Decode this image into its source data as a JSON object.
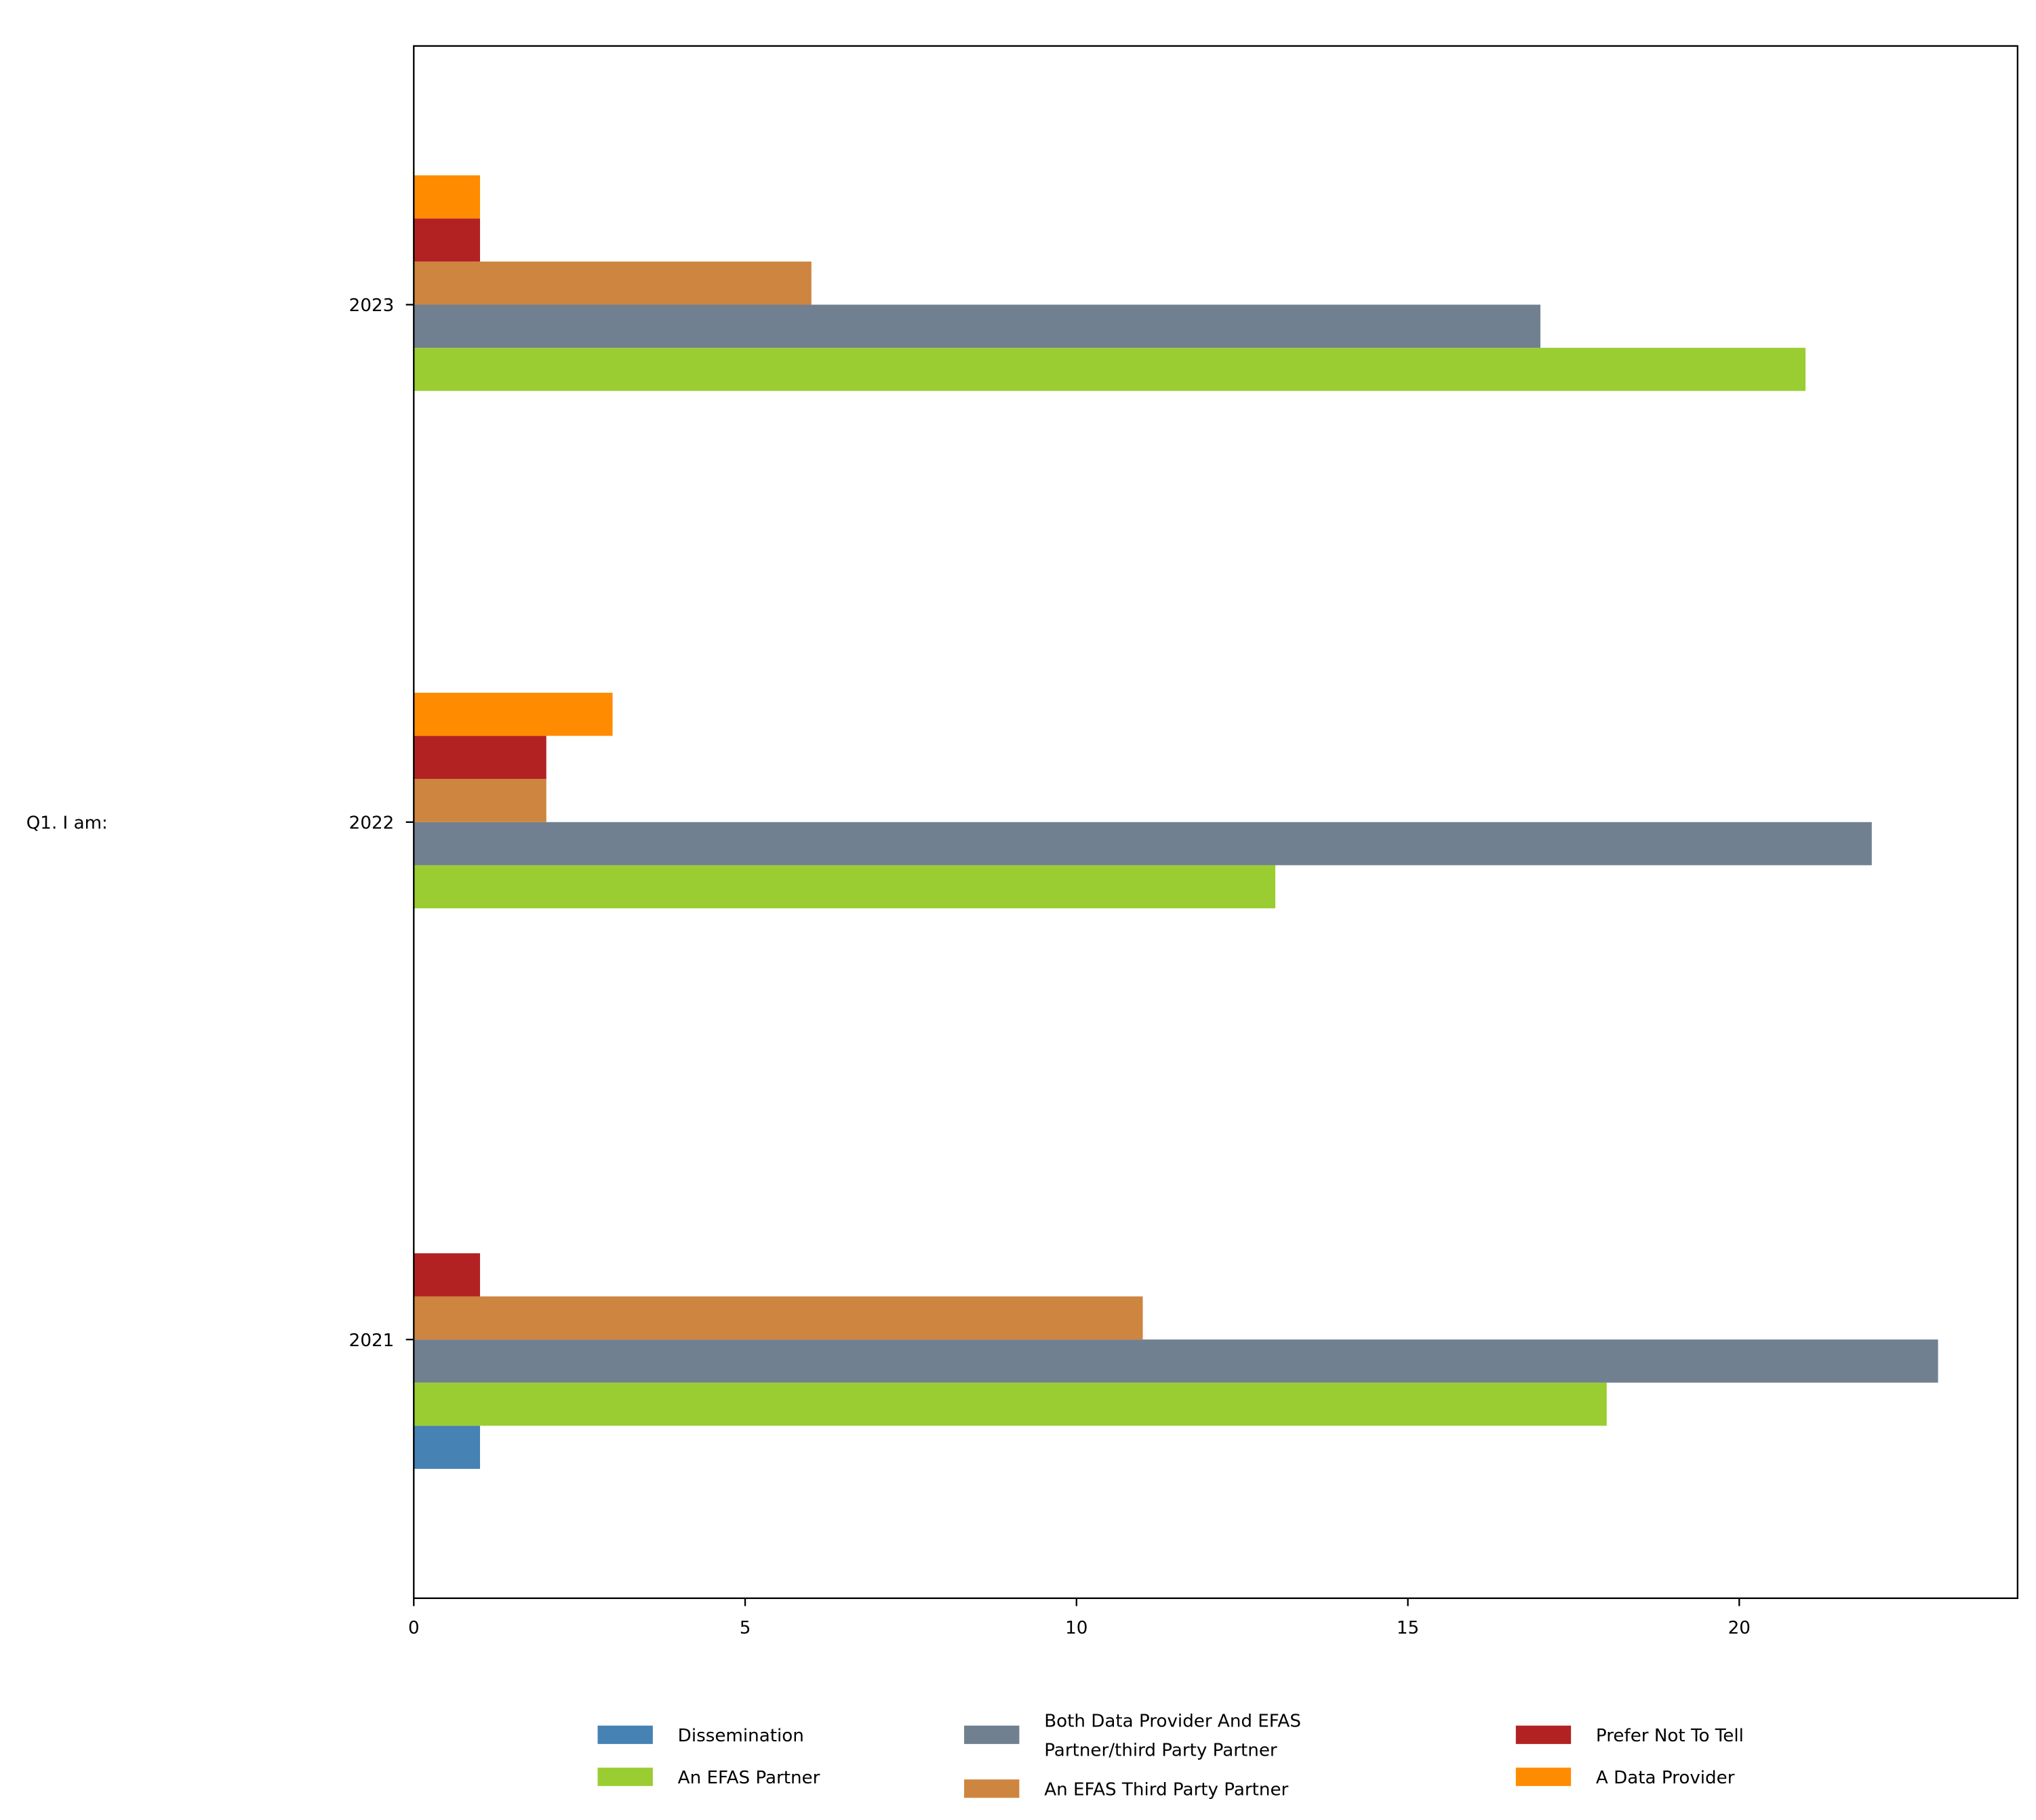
{
  "chart_data": {
    "type": "bar",
    "orientation": "horizontal",
    "title": "",
    "xlabel": "",
    "ylabel": "Q1. I am:",
    "xlim": [
      0,
      24.2
    ],
    "xticks": [
      0,
      5,
      10,
      15,
      20
    ],
    "xtick_labels": [
      "0",
      "5",
      "10",
      "15",
      "20"
    ],
    "categories": [
      "2021",
      "2022",
      "2023"
    ],
    "grid": false,
    "legend_position": "bottom-center",
    "series": [
      {
        "name": "Dissemination",
        "color": "#4682b4",
        "values": [
          1,
          0,
          0
        ]
      },
      {
        "name": "An EFAS Partner",
        "color": "#9acd32",
        "values": [
          18,
          13,
          21
        ]
      },
      {
        "name": "Both Data Provider And EFAS Partner/third Party Partner",
        "label_lines": [
          "Both Data Provider And EFAS",
          "Partner/third Party Partner"
        ],
        "color": "#708090",
        "values": [
          23,
          22,
          17
        ]
      },
      {
        "name": "An EFAS Third Party Partner",
        "color": "#cd853f",
        "values": [
          11,
          2,
          6
        ]
      },
      {
        "name": "Prefer Not To Tell",
        "color": "#b22222",
        "values": [
          1,
          2,
          1
        ]
      },
      {
        "name": "A Data Provider",
        "color": "#ff8c00",
        "values": [
          0,
          3,
          1
        ]
      }
    ]
  }
}
